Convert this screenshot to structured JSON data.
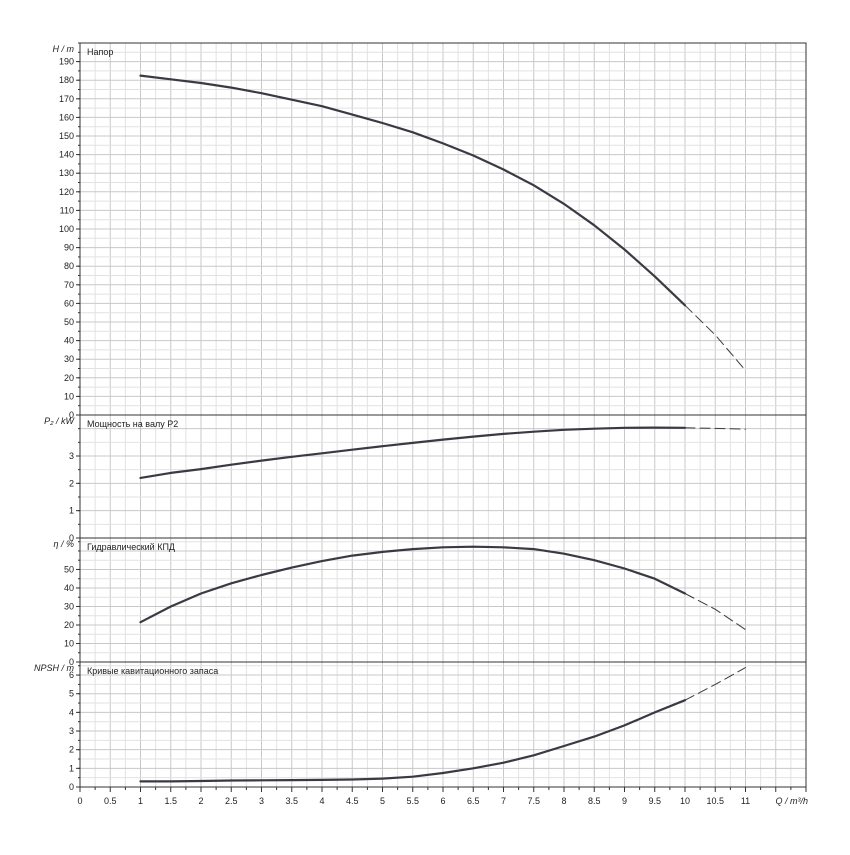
{
  "chart_data": [
    {
      "type": "line",
      "title": "Напор",
      "ylabel": "H / m",
      "ylim": [
        0,
        200
      ],
      "yticks": [
        0,
        10,
        20,
        30,
        40,
        50,
        60,
        70,
        80,
        90,
        100,
        110,
        120,
        130,
        140,
        150,
        160,
        170,
        180,
        190
      ],
      "xlim": [
        0,
        12
      ],
      "grid": true,
      "series": [
        {
          "style": "solid",
          "x": [
            1,
            1.5,
            2,
            2.5,
            3,
            3.5,
            4,
            4.5,
            5,
            5.5,
            6,
            6.5,
            7,
            7.5,
            8,
            8.5,
            9,
            9.5,
            10
          ],
          "y": [
            182.5,
            180.5,
            178.5,
            176,
            173,
            169.5,
            166,
            161.5,
            157,
            152,
            146,
            139.5,
            132,
            123.5,
            113.5,
            102,
            89,
            74.5,
            59
          ]
        },
        {
          "style": "dashed",
          "x": [
            10,
            10.5,
            11
          ],
          "y": [
            59,
            43,
            24
          ]
        }
      ]
    },
    {
      "type": "line",
      "title": "Мощность на валу P2",
      "ylabel": "P₂ / kW",
      "ylim": [
        0,
        4.5
      ],
      "yticks": [
        0,
        1,
        2,
        3
      ],
      "xlim": [
        0,
        12
      ],
      "grid": true,
      "series": [
        {
          "style": "solid",
          "x": [
            1,
            1.5,
            2,
            2.5,
            3,
            3.5,
            4,
            4.5,
            5,
            5.5,
            6,
            6.5,
            7,
            7.5,
            8,
            8.5,
            9,
            9.5,
            10
          ],
          "y": [
            2.2,
            2.38,
            2.52,
            2.68,
            2.83,
            2.97,
            3.1,
            3.23,
            3.36,
            3.48,
            3.6,
            3.71,
            3.81,
            3.89,
            3.96,
            4.0,
            4.03,
            4.04,
            4.03
          ]
        },
        {
          "style": "dashed",
          "x": [
            10,
            10.5,
            11
          ],
          "y": [
            4.03,
            4.01,
            3.98
          ]
        }
      ]
    },
    {
      "type": "line",
      "title": "Гидравлический КПД",
      "ylabel": "η / %",
      "ylim": [
        0,
        67
      ],
      "yticks": [
        0,
        10,
        20,
        30,
        40,
        50
      ],
      "xlim": [
        0,
        12
      ],
      "grid": true,
      "series": [
        {
          "style": "solid",
          "x": [
            1,
            1.5,
            2,
            2.5,
            3,
            3.5,
            4,
            4.5,
            5,
            5.5,
            6,
            6.5,
            7,
            7.5,
            8,
            8.5,
            9,
            9.5,
            10
          ],
          "y": [
            21.5,
            30,
            37,
            42.5,
            47,
            51,
            54.5,
            57.5,
            59.5,
            61,
            62,
            62.3,
            62,
            61,
            58.5,
            55,
            50.5,
            45,
            37
          ]
        },
        {
          "style": "dashed",
          "x": [
            10,
            10.5,
            11
          ],
          "y": [
            37,
            28.5,
            17.5
          ]
        }
      ]
    },
    {
      "type": "line",
      "title": "Кривые кавитационного запаса",
      "ylabel": "NPSH / m",
      "ylim": [
        0,
        6.7
      ],
      "yticks": [
        0,
        1,
        2,
        3,
        4,
        5,
        6
      ],
      "xlabel": "Q / m³/h",
      "xlim": [
        0,
        12
      ],
      "xticks": [
        "0",
        "0.5",
        "1",
        "1.5",
        "2",
        "2.5",
        "3",
        "3.5",
        "4",
        "4.5",
        "5",
        "5.5",
        "6",
        "6.5",
        "7",
        "7.5",
        "8",
        "8.5",
        "9",
        "9.5",
        "10",
        "10.5",
        "11"
      ],
      "grid": true,
      "series": [
        {
          "style": "solid",
          "x": [
            1,
            1.5,
            2,
            2.5,
            3,
            3.5,
            4,
            4.5,
            5,
            5.5,
            6,
            6.5,
            7,
            7.5,
            8,
            8.5,
            9,
            9.5,
            10
          ],
          "y": [
            0.3,
            0.3,
            0.32,
            0.35,
            0.36,
            0.37,
            0.38,
            0.4,
            0.45,
            0.55,
            0.75,
            1.0,
            1.3,
            1.7,
            2.2,
            2.7,
            3.3,
            4.0,
            4.65
          ]
        },
        {
          "style": "dashed",
          "x": [
            10,
            10.5,
            11
          ],
          "y": [
            4.65,
            5.5,
            6.4
          ]
        }
      ]
    }
  ]
}
